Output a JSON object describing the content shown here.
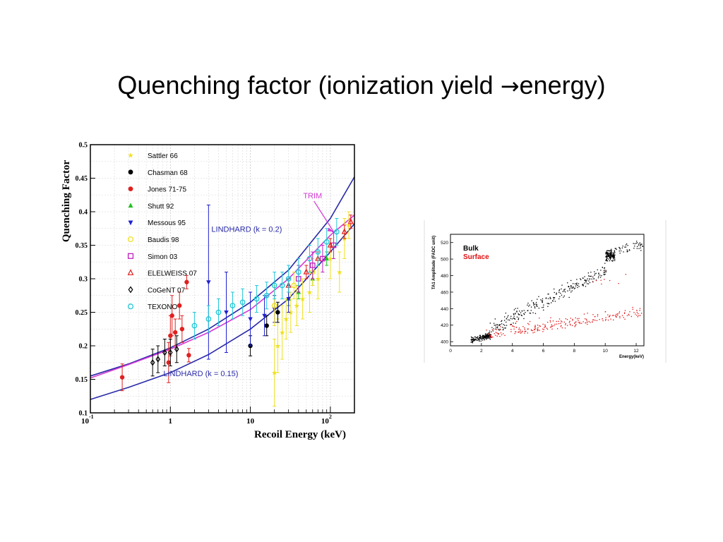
{
  "slide": {
    "title_pre": "Quenching factor (ionization yield ",
    "title_arrow": "→",
    "title_post": "energy)"
  },
  "chart_data": [
    {
      "type": "scatter",
      "x_scale": "log",
      "xlabel": "Recoil Energy  (keV)",
      "ylabel": "Quenching Factor",
      "xlim": [
        0.1,
        200
      ],
      "ylim": [
        0.1,
        0.5
      ],
      "x_ticks": [
        {
          "value": 0.1,
          "base": "10",
          "exp": "-1"
        },
        {
          "value": 1,
          "label": "1"
        },
        {
          "value": 10,
          "label": "10"
        },
        {
          "value": 100,
          "base": "10",
          "exp": "2"
        }
      ],
      "y_ticks": [
        {
          "value": 0.1,
          "label": "0.1"
        },
        {
          "value": 0.15,
          "label": "0.15"
        },
        {
          "value": 0.2,
          "label": "0.2"
        },
        {
          "value": 0.25,
          "label": "0.25"
        },
        {
          "value": 0.3,
          "label": "0.3"
        },
        {
          "value": 0.35,
          "label": "0.35"
        },
        {
          "value": 0.4,
          "label": "0.4"
        },
        {
          "value": 0.45,
          "label": "0.45"
        },
        {
          "value": 0.5,
          "label": "0.5"
        }
      ],
      "grid": true,
      "legend_position": "top-left",
      "annotations": [
        {
          "text": "TRIM",
          "x": 60,
          "y": 0.42,
          "color": "#d63bd6"
        },
        {
          "text": "LINDHARD (k = 0.2)",
          "x": 9,
          "y": 0.37,
          "color": "#2a2aa8"
        },
        {
          "text": "LINDHARD (k = 0.15)",
          "x": 2.4,
          "y": 0.155,
          "color": "#2a2aa8"
        }
      ],
      "curves": [
        {
          "name": "LINDHARD (k = 0.2)",
          "color": "#2a2aa8",
          "x": [
            0.1,
            0.3,
            1,
            3,
            10,
            30,
            100,
            200
          ],
          "y": [
            0.155,
            0.173,
            0.197,
            0.225,
            0.265,
            0.313,
            0.39,
            0.452
          ]
        },
        {
          "name": "LINDHARD (k = 0.15)",
          "color": "#2a2aa8",
          "x": [
            0.1,
            0.3,
            1,
            3,
            10,
            30,
            100,
            200
          ],
          "y": [
            0.12,
            0.138,
            0.16,
            0.187,
            0.225,
            0.27,
            0.34,
            0.382
          ]
        },
        {
          "name": "TRIM",
          "color": "#d63bd6",
          "x": [
            0.1,
            0.3,
            1,
            3,
            10,
            30,
            100,
            200
          ],
          "y": [
            0.152,
            0.172,
            0.195,
            0.22,
            0.254,
            0.3,
            0.365,
            0.395
          ]
        }
      ],
      "series": [
        {
          "name": "Sattler 66",
          "marker": "star",
          "color": "#f0e020",
          "points": [
            [
              20,
              0.16,
              0.05
            ],
            [
              22,
              0.2,
              0.04
            ],
            [
              25,
              0.22,
              0.04
            ],
            [
              28,
              0.24,
              0.03
            ],
            [
              32,
              0.25,
              0.03
            ],
            [
              38,
              0.26,
              0.03
            ],
            [
              45,
              0.27,
              0.03
            ],
            [
              55,
              0.28,
              0.03
            ],
            [
              70,
              0.3,
              0.03
            ],
            [
              100,
              0.33,
              0.03
            ],
            [
              130,
              0.31,
              0.03
            ],
            [
              150,
              0.36,
              0.03
            ],
            [
              170,
              0.38,
              0.02
            ]
          ]
        },
        {
          "name": "Chasman 68",
          "marker": "circle",
          "color": "#000000",
          "points": [
            [
              10,
              0.2,
              0.015
            ],
            [
              16,
              0.23,
              0.015
            ],
            [
              22,
              0.25,
              0.015
            ]
          ]
        },
        {
          "name": "Jones 71-75",
          "marker": "circle",
          "color": "#e02020",
          "points": [
            [
              0.25,
              0.153,
              0.02
            ],
            [
              0.95,
              0.175,
              0.03
            ],
            [
              1.0,
              0.215,
              0.03
            ],
            [
              1.05,
              0.245,
              0.03
            ],
            [
              1.15,
              0.22,
              0.02
            ],
            [
              1.3,
              0.26,
              0.02
            ],
            [
              1.4,
              0.225,
              0.02
            ],
            [
              1.6,
              0.295,
              0.01
            ],
            [
              1.7,
              0.186,
              0.01
            ]
          ]
        },
        {
          "name": "Shutt 92",
          "marker": "triangle-up",
          "color": "#20c020",
          "points": [
            [
              30,
              0.27,
              0.01
            ],
            [
              40,
              0.28,
              0.01
            ],
            [
              60,
              0.3,
              0.01
            ],
            [
              90,
              0.33,
              0.01
            ]
          ]
        },
        {
          "name": "Messous 95",
          "marker": "triangle-down",
          "color": "#2020d0",
          "points": [
            [
              3,
              0.295,
              0.115
            ],
            [
              5,
              0.25,
              0.06
            ],
            [
              10,
              0.24,
              0.04
            ],
            [
              15,
              0.245,
              0.03
            ],
            [
              20,
              0.255,
              0.02
            ],
            [
              30,
              0.27,
              0.02
            ]
          ]
        },
        {
          "name": "Baudis 98",
          "marker": "circle-open",
          "color": "#f0e020",
          "points": [
            [
              20,
              0.26,
              0.03
            ],
            [
              35,
              0.29,
              0.02
            ],
            [
              60,
              0.31,
              0.02
            ]
          ]
        },
        {
          "name": "Simon 03",
          "marker": "square-open",
          "color": "#c020c0",
          "points": [
            [
              40,
              0.3,
              0.02
            ],
            [
              60,
              0.32,
              0.02
            ],
            [
              80,
              0.33,
              0.02
            ],
            [
              110,
              0.35,
              0.02
            ]
          ]
        },
        {
          "name": "ELELWEISS 07",
          "marker": "triangle-open",
          "color": "#e02020",
          "points": [
            [
              30,
              0.29,
              0.01
            ],
            [
              50,
              0.31,
              0.01
            ],
            [
              70,
              0.33,
              0.01
            ],
            [
              100,
              0.35,
              0.01
            ],
            [
              150,
              0.37,
              0.01
            ],
            [
              180,
              0.385,
              0.01
            ]
          ]
        },
        {
          "name": "CoGeNT 07",
          "marker": "diamond-open",
          "color": "#000000",
          "points": [
            [
              0.6,
              0.175,
              0.02
            ],
            [
              0.7,
              0.18,
              0.02
            ],
            [
              0.85,
              0.19,
              0.02
            ],
            [
              1.0,
              0.19,
              0.02
            ],
            [
              1.2,
              0.195,
              0.02
            ]
          ]
        },
        {
          "name": "TEXONO",
          "marker": "circle-open",
          "color": "#20c8d8",
          "points": [
            [
              2,
              0.23,
              0.02
            ],
            [
              3,
              0.24,
              0.02
            ],
            [
              4,
              0.25,
              0.02
            ],
            [
              6,
              0.26,
              0.02
            ],
            [
              8,
              0.265,
              0.02
            ],
            [
              12,
              0.27,
              0.02
            ],
            [
              16,
              0.275,
              0.02
            ],
            [
              20,
              0.29,
              0.02
            ],
            [
              25,
              0.29,
              0.02
            ],
            [
              30,
              0.3,
              0.02
            ],
            [
              40,
              0.31,
              0.02
            ],
            [
              55,
              0.33,
              0.02
            ],
            [
              70,
              0.34,
              0.02
            ],
            [
              90,
              0.355,
              0.02
            ],
            [
              120,
              0.37,
              0.02
            ]
          ]
        }
      ]
    },
    {
      "type": "scatter",
      "xlabel": "Energy(keV)",
      "ylabel": "TA1 Amplitude (FADC unit)",
      "xlim": [
        0,
        12.5
      ],
      "ylim": [
        395,
        530
      ],
      "x_ticks": [
        0,
        2,
        4,
        6,
        8,
        10,
        12
      ],
      "y_ticks": [
        400,
        420,
        440,
        460,
        480,
        500,
        520
      ],
      "legend_position": "top-left",
      "series": [
        {
          "name": "Bulk",
          "color": "#000000"
        },
        {
          "name": "Surface",
          "color": "#e01010"
        }
      ]
    }
  ]
}
